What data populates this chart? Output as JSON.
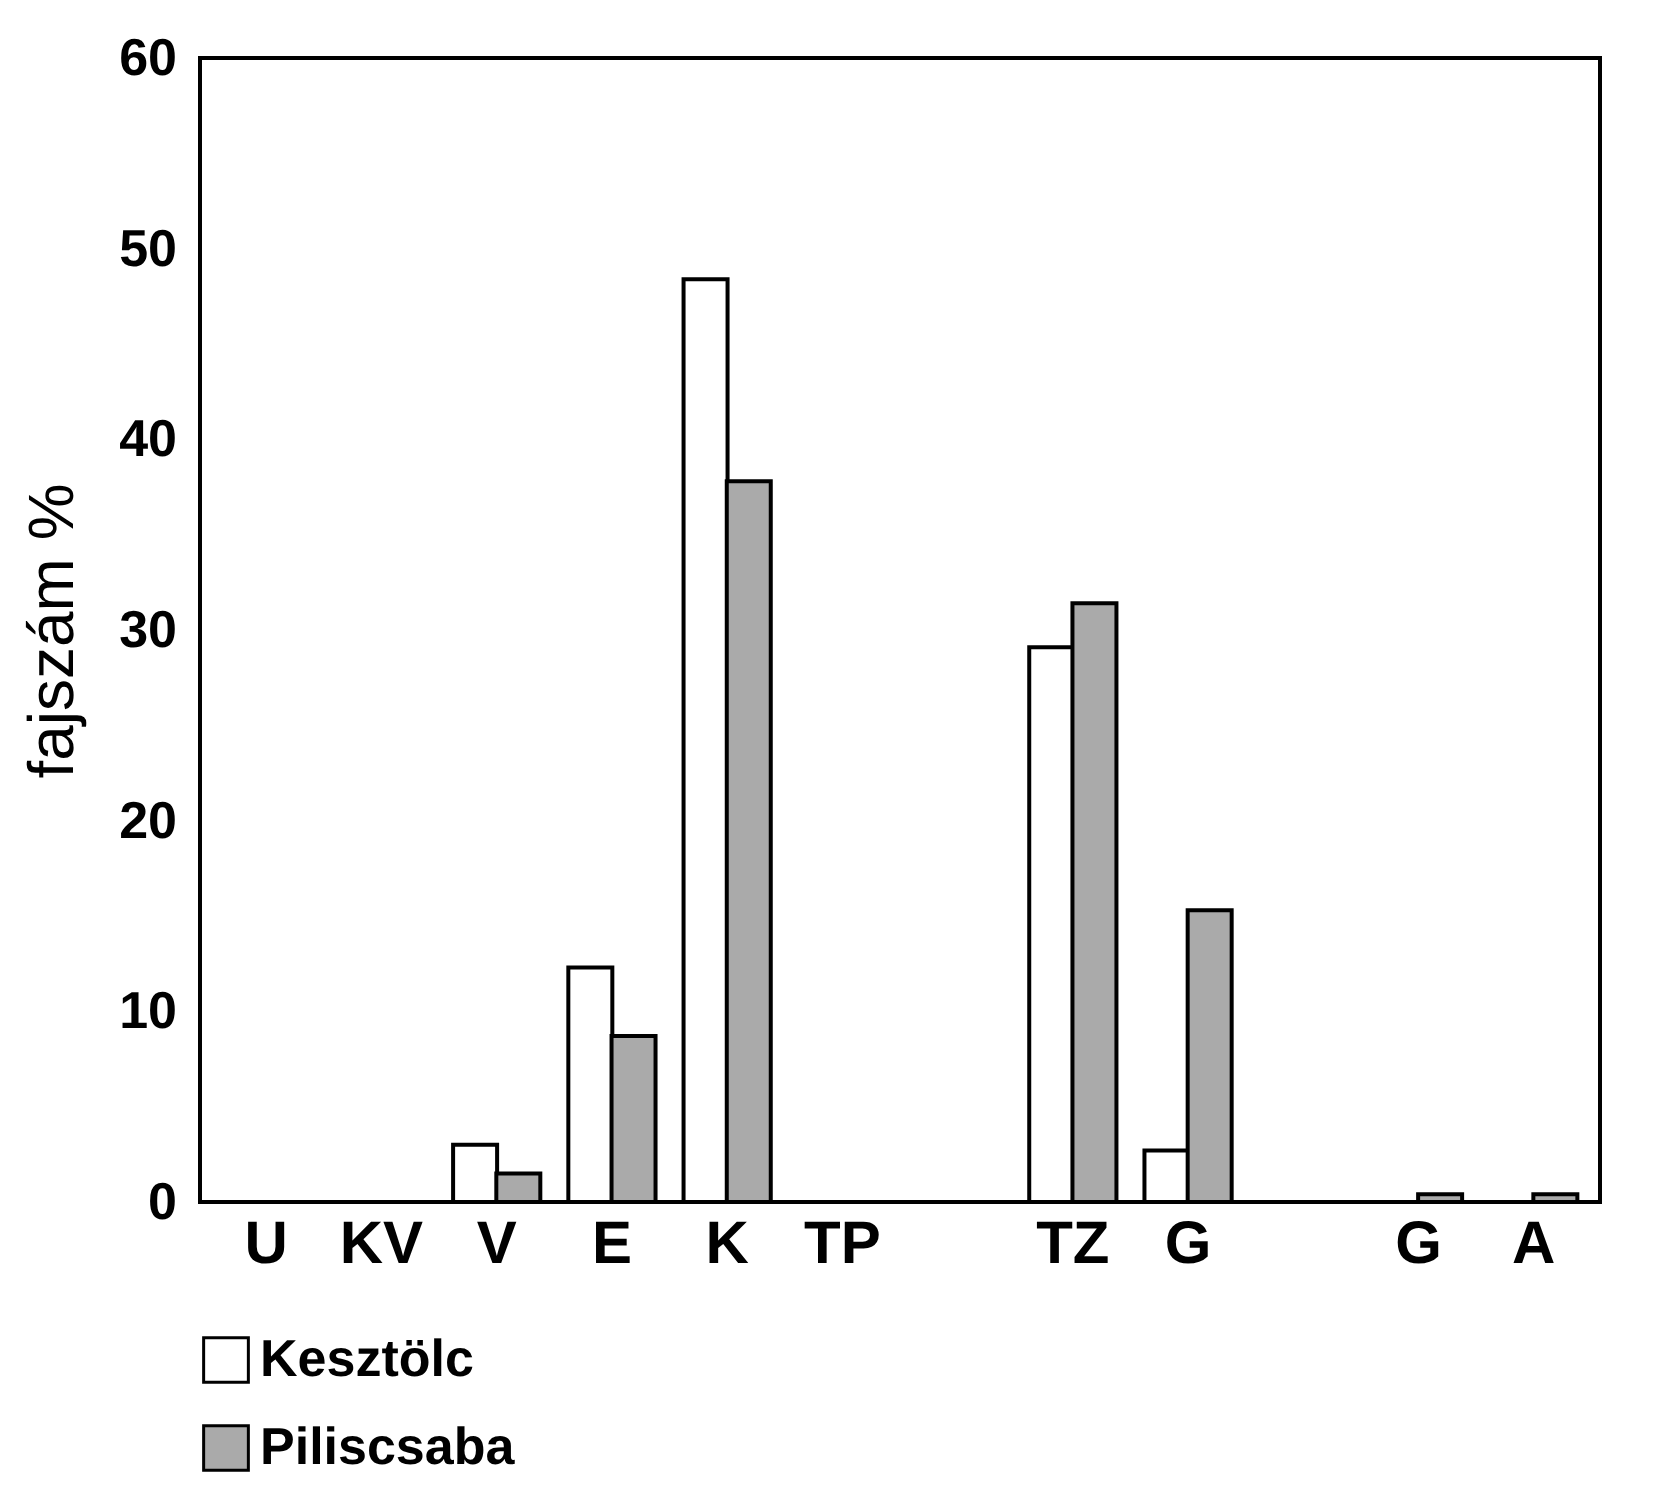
{
  "chart_data": {
    "type": "bar",
    "ylabel": "fajszám %",
    "categories": [
      "U",
      "KV",
      "V",
      "E",
      "K",
      "TP",
      null,
      "TZ",
      "G",
      null,
      "G",
      "A"
    ],
    "series": [
      {
        "name": "Kesztölc",
        "color": "#ffffff",
        "values": [
          null,
          null,
          3.0,
          12.3,
          48.4,
          null,
          null,
          29.1,
          2.7,
          null,
          null,
          null
        ]
      },
      {
        "name": "Piliscsaba",
        "color": "#aaaaaa",
        "values": [
          null,
          null,
          1.5,
          8.7,
          37.8,
          null,
          null,
          31.4,
          15.3,
          null,
          0.4,
          0.4
        ]
      }
    ],
    "ylim": [
      0,
      60
    ],
    "yticks": [
      0,
      10,
      20,
      30,
      40,
      50,
      60
    ],
    "grid": false,
    "legend": "bottom left"
  }
}
